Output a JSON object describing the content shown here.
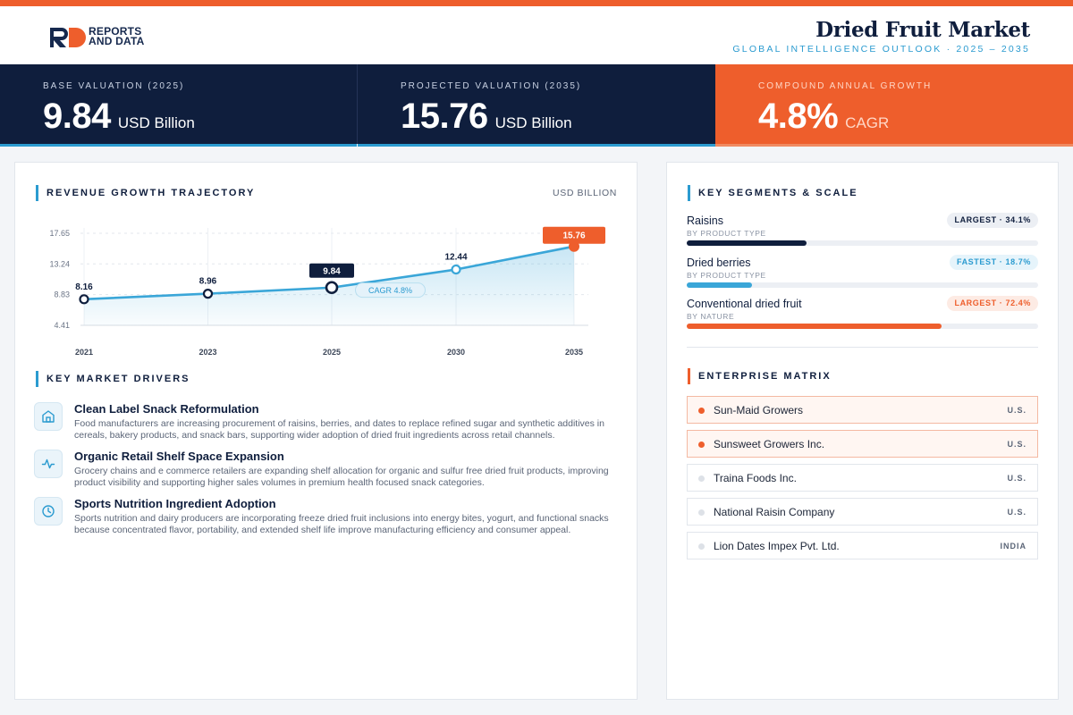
{
  "brand": {
    "line1": "REPORTS",
    "line2": "AND DATA"
  },
  "header": {
    "title": "Dried Fruit Market",
    "subtitle": "GLOBAL INTELLIGENCE OUTLOOK  ·  2025 – 2035"
  },
  "kpis": [
    {
      "label": "BASE VALUATION (2025)",
      "value": "9.84",
      "unit": "USD Billion"
    },
    {
      "label": "PROJECTED VALUATION (2035)",
      "value": "15.76",
      "unit": "USD Billion"
    },
    {
      "label": "COMPOUND ANNUAL GROWTH",
      "value": "4.8%",
      "unit": "CAGR"
    }
  ],
  "revenue": {
    "title": "REVENUE GROWTH TRAJECTORY",
    "unit": "USD BILLION",
    "cagr_label": "CAGR 4.8%"
  },
  "chart_data": {
    "type": "area",
    "x": [
      "2021",
      "2023",
      "2025",
      "2030",
      "2035"
    ],
    "values": [
      8.16,
      8.96,
      9.84,
      12.44,
      15.76
    ],
    "value_labels": [
      "8.16",
      "8.96",
      "9.84",
      "12.44",
      "15.76"
    ],
    "y_ticks": [
      "17.65",
      "13.24",
      "8.83",
      "4.41"
    ],
    "y_tick_values": [
      17.65,
      13.24,
      8.83,
      4.41
    ],
    "ylim": [
      4.41,
      17.65
    ],
    "grid": true,
    "colors": {
      "line": "#3aa6d8",
      "highlight": "#0f1e3d",
      "end": "#ee5e2c"
    }
  },
  "drivers": {
    "title": "KEY MARKET DRIVERS",
    "items": [
      {
        "icon": "storefront-icon",
        "heading": "Clean Label Snack Reformulation",
        "text": "Food manufacturers are increasing procurement of raisins, berries, and dates to replace refined sugar and synthetic additives in cereals, bakery products, and snack bars, supporting wider adoption of dried fruit ingredients across retail channels."
      },
      {
        "icon": "pulse-icon",
        "heading": "Organic Retail Shelf Space Expansion",
        "text": "Grocery chains and e commerce retailers are expanding shelf allocation for organic and sulfur free dried fruit products, improving product visibility and supporting higher sales volumes in premium health focused snack categories."
      },
      {
        "icon": "clock-icon",
        "heading": "Sports Nutrition Ingredient Adoption",
        "text": "Sports nutrition and dairy producers are incorporating freeze dried fruit inclusions into energy bites, yogurt, and functional snacks because concentrated flavor, portability, and extended shelf life improve manufacturing efficiency and consumer appeal."
      }
    ]
  },
  "segments": {
    "title": "KEY SEGMENTS & SCALE",
    "items": [
      {
        "name": "Raisins",
        "category": "BY PRODUCT TYPE",
        "badge": "LARGEST · 34.1%",
        "share": 34.1,
        "color": "#0f1e3d",
        "badge_bg": "#eceff4",
        "badge_fg": "#0f1e3d"
      },
      {
        "name": "Dried berries",
        "category": "BY PRODUCT TYPE",
        "badge": "FASTEST · 18.7%",
        "share": 18.7,
        "color": "#3aa6d8",
        "badge_bg": "#e6f4fb",
        "badge_fg": "#2b9bd0"
      },
      {
        "name": "Conventional dried fruit",
        "category": "BY NATURE",
        "badge": "LARGEST · 72.4%",
        "share": 72.4,
        "color": "#ee5e2c",
        "badge_bg": "#fdebe4",
        "badge_fg": "#ee5e2c"
      }
    ]
  },
  "enterprise": {
    "title": "ENTERPRISE MATRIX",
    "items": [
      {
        "name": "Sun-Maid Growers",
        "country": "U.S.",
        "highlight": true
      },
      {
        "name": "Sunsweet Growers Inc.",
        "country": "U.S.",
        "highlight": true
      },
      {
        "name": "Traina Foods Inc.",
        "country": "U.S.",
        "highlight": false
      },
      {
        "name": "National Raisin Company",
        "country": "U.S.",
        "highlight": false
      },
      {
        "name": "Lion Dates Impex Pvt. Ltd.",
        "country": "INDIA",
        "highlight": false
      }
    ]
  }
}
